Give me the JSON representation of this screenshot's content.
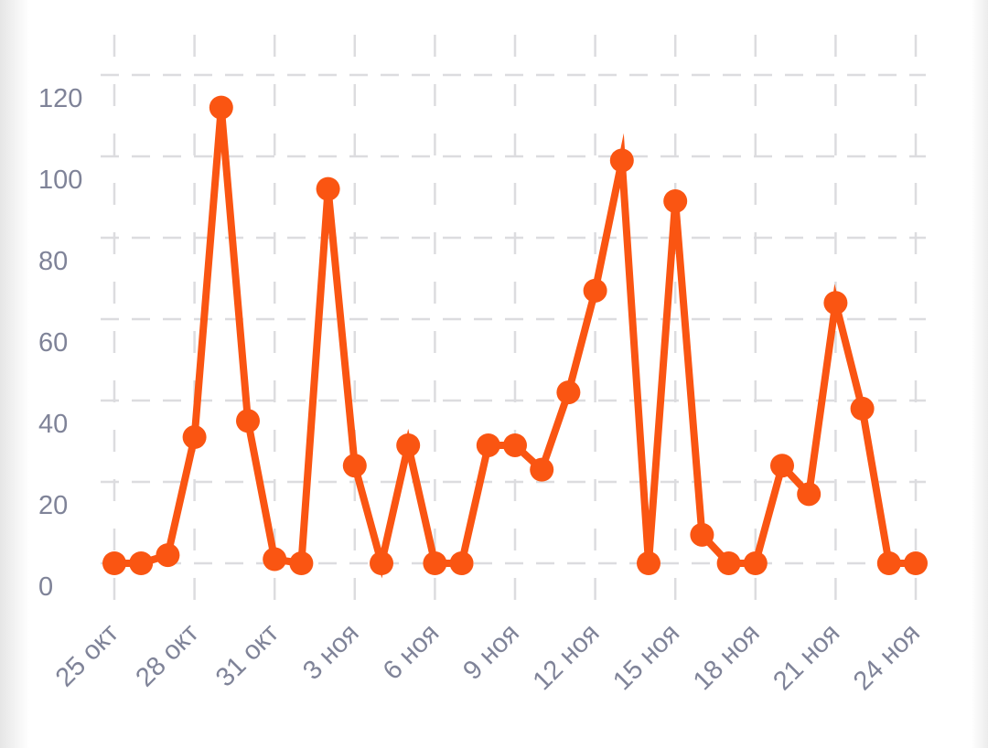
{
  "chart_data": {
    "type": "line",
    "title": "",
    "xlabel": "",
    "ylabel": "",
    "ylim": [
      0,
      120
    ],
    "yticks": [
      "0",
      "20",
      "40",
      "60",
      "80",
      "100",
      "120"
    ],
    "xtick_labels": [
      "25 окт",
      "28 окт",
      "31 окт",
      "3 ноя",
      "6 ноя",
      "9 ноя",
      "12 ноя",
      "15 ноя",
      "18 ноя",
      "21 ноя",
      "24 ноя"
    ],
    "x": [
      "25 окт",
      "26 окт",
      "27 окт",
      "28 окт",
      "29 окт",
      "30 окт",
      "31 окт",
      "1 ноя",
      "2 ноя",
      "3 ноя",
      "4 ноя",
      "5 ноя",
      "6 ноя",
      "7 ноя",
      "8 ноя",
      "9 ноя",
      "10 ноя",
      "11 ноя",
      "12 ноя",
      "13 ноя",
      "14 ноя",
      "15 ноя",
      "16 ноя",
      "17 ноя",
      "18 ноя",
      "19 ноя",
      "20 ноя",
      "21 ноя",
      "22 ноя",
      "23 ноя",
      "24 ноя"
    ],
    "series": [
      {
        "name": "",
        "color": "#fa5512",
        "values": [
          0,
          0,
          2,
          31,
          112,
          35,
          1,
          0,
          92,
          24,
          0,
          29,
          0,
          0,
          29,
          29,
          23,
          42,
          67,
          99,
          0,
          89,
          7,
          0,
          0,
          24,
          17,
          64,
          38,
          0,
          0
        ]
      }
    ],
    "grid": true,
    "legend": "none"
  }
}
